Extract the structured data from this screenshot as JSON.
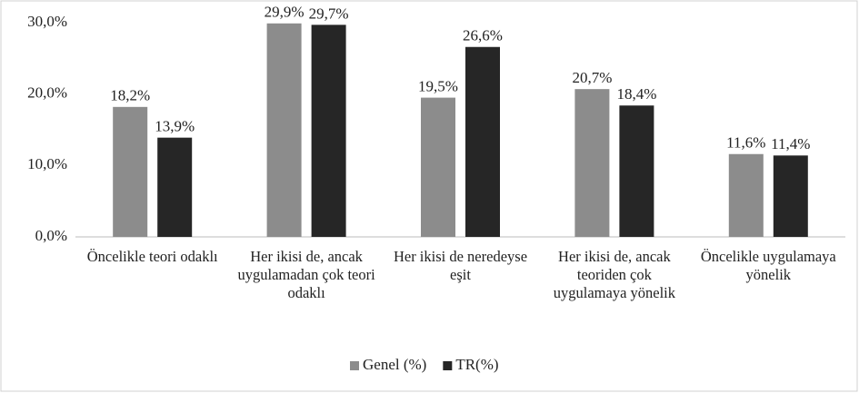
{
  "chart_data": {
    "type": "bar",
    "categories": [
      "Öncelikle teori odaklı",
      "Her ikisi de, ancak uygulamadan çok teori odaklı",
      "Her ikisi de neredeyse eşit",
      "Her ikisi de, ancak teoriden çok uygulamaya yönelik",
      "Öncelikle uygulamaya yönelik"
    ],
    "series": [
      {
        "name": "Genel (%)",
        "color": "#8c8c8c",
        "values": [
          18.2,
          29.9,
          19.5,
          20.7,
          11.6
        ],
        "value_labels": [
          "18,2%",
          "29,9%",
          "19,5%",
          "20,7%",
          "11,6%"
        ]
      },
      {
        "name": "TR(%)",
        "color": "#262626",
        "values": [
          13.9,
          29.7,
          26.6,
          18.4,
          11.4
        ],
        "value_labels": [
          "13,9%",
          "29,7%",
          "26,6%",
          "18,4%",
          "11,4%"
        ]
      }
    ],
    "ylim": [
      0,
      30
    ],
    "yticks": [
      {
        "value": 0,
        "label": "0,0%"
      },
      {
        "value": 10,
        "label": "10,0%"
      },
      {
        "value": 20,
        "label": "20,0%"
      },
      {
        "value": 30,
        "label": "30,0%"
      }
    ],
    "grid": false,
    "legend": "bottom"
  }
}
